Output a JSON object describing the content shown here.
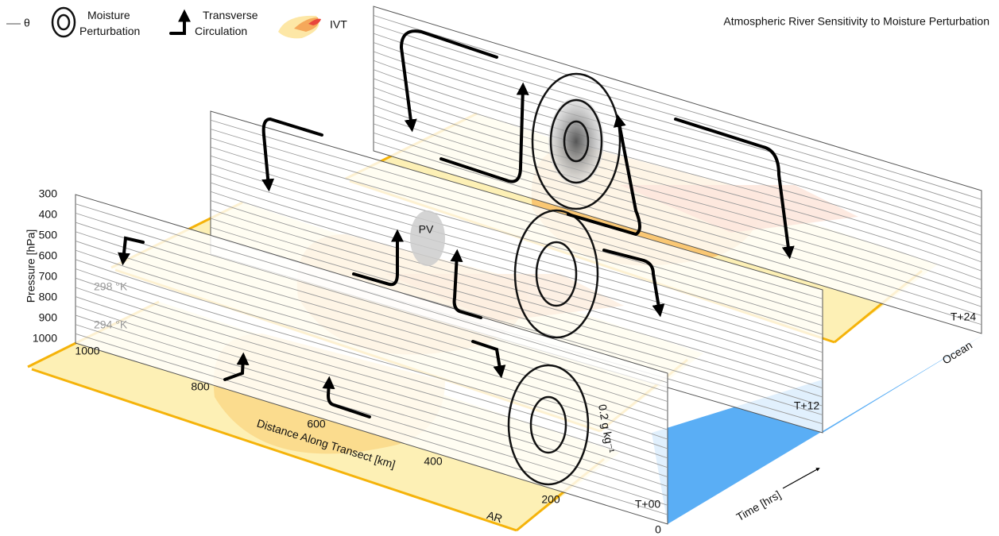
{
  "title": "Atmospheric River Sensitivity to Moisture Perturbation",
  "legend": {
    "theta": "θ",
    "moisture": "Moisture Perturbation",
    "circulation": "Transverse Circulation",
    "ivt": "IVT"
  },
  "pressure_axis": {
    "label": "Pressure [hPa]",
    "ticks": [
      "300",
      "400",
      "500",
      "600",
      "700",
      "800",
      "900",
      "1000"
    ]
  },
  "isentropes": [
    "298 °K",
    "294 °K"
  ],
  "distance_axis": {
    "label": "Distance Along Transect [km]",
    "ticks": [
      "1000",
      "800",
      "600",
      "400",
      "200",
      "0"
    ]
  },
  "time_axis": {
    "label": "Time [hrs]",
    "slices": [
      "T+00",
      "T+12",
      "T+24"
    ]
  },
  "annotations": {
    "ar": "AR",
    "pv": "PV",
    "contour": "0.2 g kg⁻¹",
    "ocean": "Ocean"
  }
}
